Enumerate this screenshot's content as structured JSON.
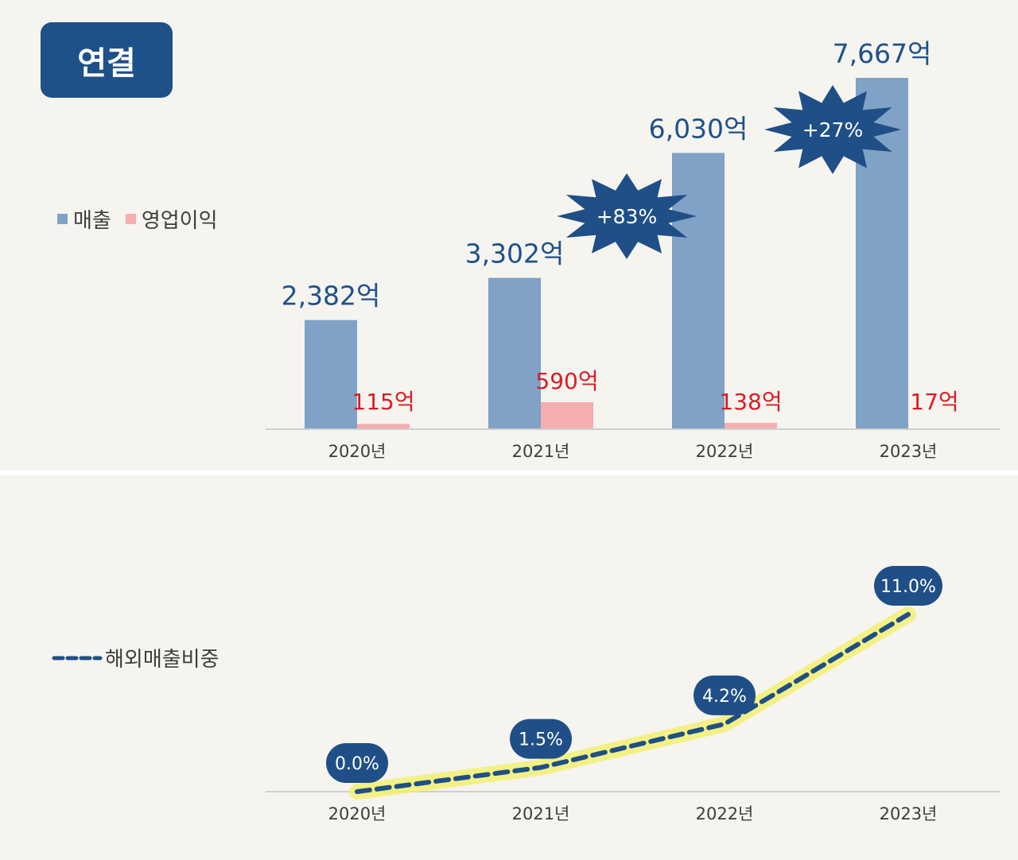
{
  "title_badge": "연결",
  "colors": {
    "revenue": "#7fa2c6",
    "operating_profit": "#f6aeb0",
    "revenue_label": "#1f5189",
    "profit_label": "#d91c24",
    "starburst": "#1f4f86",
    "ratio_line": "#1f4f86",
    "ratio_glow": "#f3f06a",
    "axis": "#cfcfcf",
    "tick": "#3d3d3d"
  },
  "chart_data": [
    {
      "type": "bar",
      "categories": [
        "2020년",
        "2021년",
        "2022년",
        "2023년"
      ],
      "series": [
        {
          "name": "매출",
          "values": [
            2382,
            3302,
            6030,
            7667
          ],
          "labels": [
            "2,382억",
            "3,302억",
            "6,030억",
            "7,667억"
          ]
        },
        {
          "name": "영업이익",
          "values": [
            115,
            590,
            138,
            17
          ],
          "labels": [
            "115억",
            "590억",
            "138억",
            "17억"
          ]
        }
      ],
      "annotations": [
        {
          "between": [
            "2021년",
            "2022년"
          ],
          "text": "+83%"
        },
        {
          "between": [
            "2022년",
            "2023년"
          ],
          "text": "+27%"
        }
      ],
      "legend": "left",
      "ylim": [
        0,
        8000
      ],
      "grid": false
    },
    {
      "type": "line",
      "categories": [
        "2020년",
        "2021년",
        "2022년",
        "2023년"
      ],
      "series": [
        {
          "name": "해외매출비중",
          "values": [
            0.0,
            1.5,
            4.2,
            11.0
          ],
          "labels": [
            "0.0%",
            "1.5%",
            "4.2%",
            "11.0%"
          ],
          "style": "dashed"
        }
      ],
      "legend": "left",
      "ylim": [
        0,
        12
      ],
      "grid": false
    }
  ]
}
